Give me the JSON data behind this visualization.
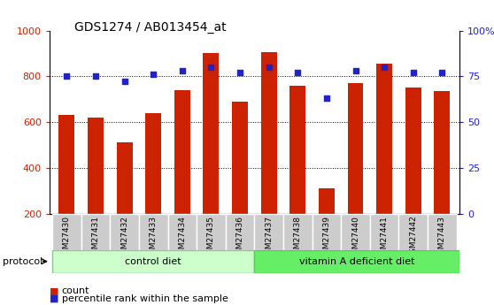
{
  "title": "GDS1274 / AB013454_at",
  "categories": [
    "GSM27430",
    "GSM27431",
    "GSM27432",
    "GSM27433",
    "GSM27434",
    "GSM27435",
    "GSM27436",
    "GSM27437",
    "GSM27438",
    "GSM27439",
    "GSM27440",
    "GSM27441",
    "GSM27442",
    "GSM27443"
  ],
  "counts": [
    630,
    620,
    510,
    640,
    740,
    900,
    690,
    905,
    760,
    310,
    770,
    855,
    750,
    735
  ],
  "percentiles": [
    75,
    75,
    72,
    76,
    78,
    80,
    77,
    80,
    77,
    63,
    78,
    80,
    77,
    77
  ],
  "bar_color": "#CC2200",
  "dot_color": "#2222CC",
  "control_diet_count": 7,
  "ylim_left": [
    200,
    1000
  ],
  "ylim_right": [
    0,
    100
  ],
  "yticks_left": [
    200,
    400,
    600,
    800,
    1000
  ],
  "yticks_right": [
    0,
    25,
    50,
    75,
    100
  ],
  "ytick_labels_right": [
    "0",
    "25",
    "50",
    "75",
    "100%"
  ],
  "grid_values": [
    400,
    600,
    800
  ],
  "control_label": "control diet",
  "vitaminA_label": "vitamin A deficient diet",
  "protocol_label": "protocol",
  "legend_count": "count",
  "legend_percentile": "percentile rank within the sample",
  "control_bg": "#CCFFCC",
  "vitaminA_bg": "#66EE66",
  "xticklabel_bg": "#CCCCCC",
  "bar_bottom": 200
}
